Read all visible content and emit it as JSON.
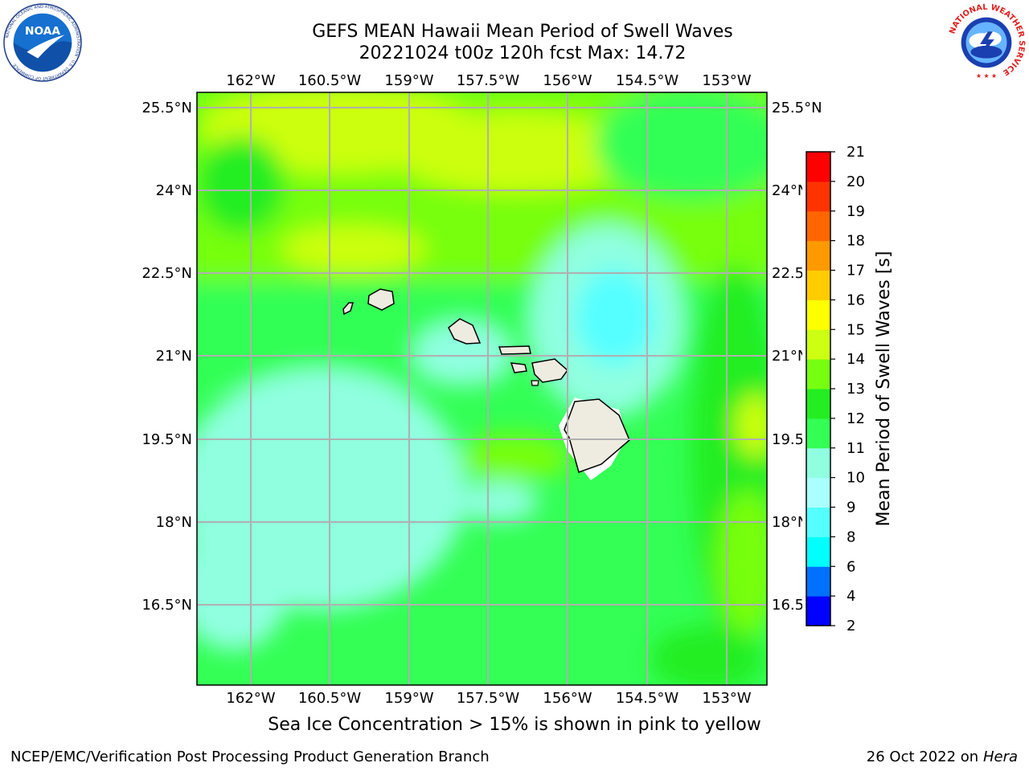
{
  "title_line1": "GEFS MEAN Hawaii Mean Period of Swell Waves",
  "title_line2": "20221024 t00z 120h fcst   Max: 14.72",
  "caption": "Sea Ice Concentration > 15% is shown in pink to yellow",
  "footer_left": "NCEP/EMC/Verification Post Processing Product Generation Branch",
  "footer_date": "26 Oct 2022 on ",
  "footer_machine": "Hera",
  "logos": {
    "noaa_text": "NOAA",
    "noaa_ring_text": "NATIONAL OCEANIC AND ATMOSPHERIC ADMINISTRATION · U.S. DEPARTMENT OF COMMERCE",
    "nws_ring_text": "NATIONAL WEATHER SERVICE"
  },
  "map": {
    "lon_ticks": [
      "162°W",
      "160.5°W",
      "159°W",
      "157.5°W",
      "156°W",
      "154.5°W",
      "153°W"
    ],
    "lat_ticks": [
      "25.5°N",
      "24°N",
      "22.5°N",
      "21°N",
      "19.5°N",
      "18°N",
      "16.5°N"
    ],
    "lon_range": [
      -163,
      -152.25
    ],
    "lat_range": [
      15.0,
      25.75
    ],
    "grid": true
  },
  "colorbar": {
    "label": "Mean Period of Swell Waves [s]",
    "levels": [
      2,
      4,
      6,
      8,
      9,
      10,
      11,
      12,
      13,
      14,
      15,
      16,
      17,
      18,
      19,
      20,
      21
    ],
    "colors": [
      "#0000ff",
      "#0070ff",
      "#00ffff",
      "#55ffff",
      "#aaffff",
      "#90ffe0",
      "#33ff55",
      "#22ee22",
      "#77ff11",
      "#ccff11",
      "#ffff00",
      "#ffcc00",
      "#ff9900",
      "#ff6600",
      "#ff3300",
      "#ff0000"
    ]
  },
  "colors": {
    "land": "#eeebe0",
    "grid": "#b0b0b0"
  }
}
